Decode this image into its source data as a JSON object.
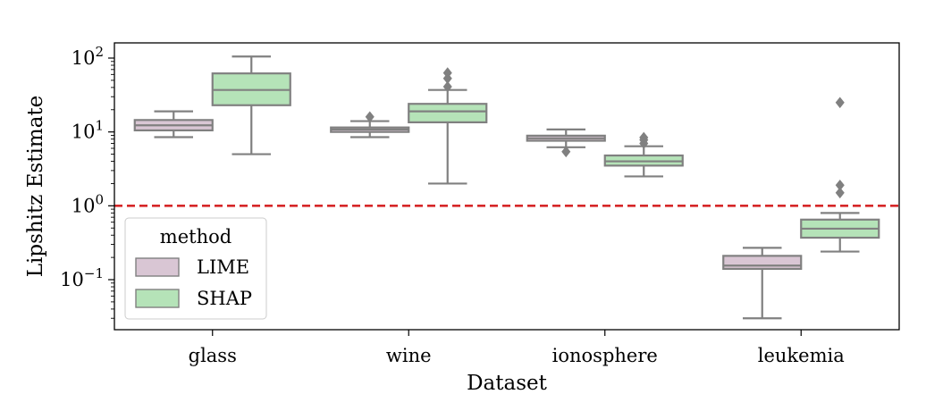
{
  "chart_data": {
    "type": "box",
    "xlabel": "Dataset",
    "ylabel": "Lipshitz Estimate",
    "yscale": "log",
    "ylim": [
      0.02,
      160
    ],
    "yticks": [
      {
        "value": 0.1,
        "base": "10",
        "exp": "−1"
      },
      {
        "value": 1,
        "base": "10",
        "exp": "0"
      },
      {
        "value": 10,
        "base": "10",
        "exp": "1"
      },
      {
        "value": 100,
        "base": "10",
        "exp": "2"
      }
    ],
    "categories": [
      "glass",
      "wine",
      "ionosphere",
      "leukemia"
    ],
    "reference_line": {
      "value": 1.0,
      "style": "dashed",
      "color": "#d62728"
    },
    "legend": {
      "title": "method",
      "placement": "lower-left"
    },
    "series": [
      {
        "name": "LIME",
        "color": "#d9c6d4",
        "boxes": [
          {
            "whislo": 8.5,
            "q1": 10.5,
            "med": 12.3,
            "q3": 14.5,
            "whishi": 19,
            "fliers": []
          },
          {
            "whislo": 8.5,
            "q1": 10.0,
            "med": 10.8,
            "q3": 11.5,
            "whishi": 14,
            "fliers": [
              16
            ]
          },
          {
            "whislo": 6.2,
            "q1": 7.6,
            "med": 8.2,
            "q3": 8.9,
            "whishi": 10.8,
            "fliers": [
              5.4
            ]
          },
          {
            "whislo": 0.03,
            "q1": 0.14,
            "med": 0.155,
            "q3": 0.21,
            "whishi": 0.27,
            "fliers": []
          }
        ]
      },
      {
        "name": "SHAP",
        "color": "#b5e3b8",
        "boxes": [
          {
            "whislo": 5,
            "q1": 23,
            "med": 37,
            "q3": 62,
            "whishi": 105,
            "fliers": []
          },
          {
            "whislo": 2.0,
            "q1": 13.5,
            "med": 19,
            "q3": 24,
            "whishi": 37,
            "fliers": [
              41,
              53,
              63
            ]
          },
          {
            "whislo": 2.5,
            "q1": 3.5,
            "med": 4.0,
            "q3": 4.8,
            "whishi": 6.4,
            "fliers": [
              7.0,
              7.8,
              8.4
            ]
          },
          {
            "whislo": 0.24,
            "q1": 0.37,
            "med": 0.49,
            "q3": 0.65,
            "whishi": 0.8,
            "fliers": [
              1.5,
              1.9,
              25
            ]
          }
        ]
      }
    ]
  }
}
